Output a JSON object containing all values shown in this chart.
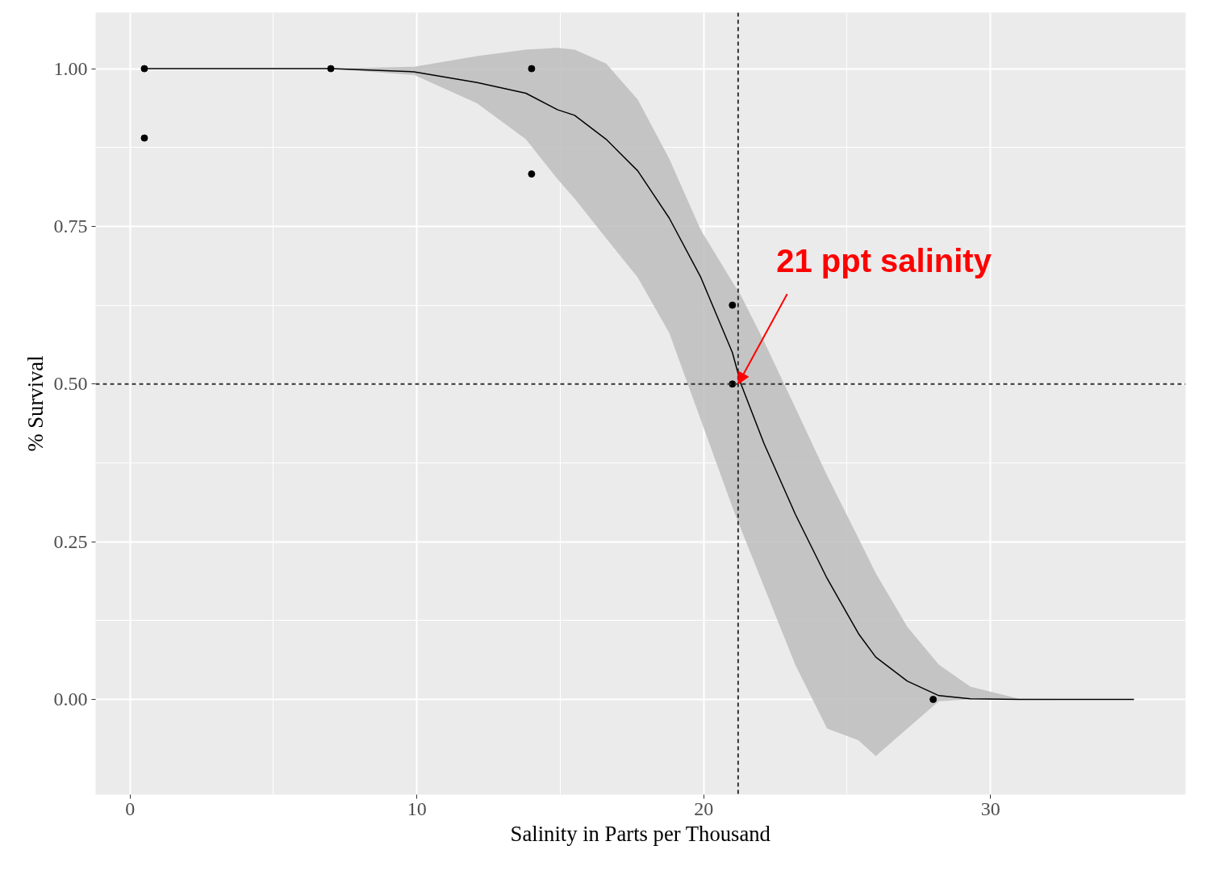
{
  "chart_data": {
    "type": "scatter",
    "xlabel": "Salinity in Parts per Thousand",
    "ylabel": "% Survival",
    "xlim": [
      -1.2,
      36.8
    ],
    "ylim": [
      -0.151,
      1.089
    ],
    "xticks": [
      0,
      10,
      20,
      30
    ],
    "yticks": [
      {
        "value": 0,
        "label": "0.00"
      },
      {
        "value": 0.25,
        "label": "0.25"
      },
      {
        "value": 0.5,
        "label": "0.50"
      },
      {
        "value": 0.75,
        "label": "0.75"
      },
      {
        "value": 1,
        "label": "1.00"
      }
    ],
    "grid": true,
    "marker": "circle",
    "series": [
      {
        "color": "#000000",
        "x": [
          0.5,
          0.5,
          7,
          14,
          14,
          21,
          21,
          28
        ],
        "values": [
          1,
          0.89,
          1,
          1,
          0.833,
          0.625,
          0.5,
          0
        ]
      },
      {
        "type": "line",
        "color": "#000000",
        "line_style": "solid",
        "marker": "none",
        "x": [
          0.5,
          5.5,
          7,
          9.9,
          12.1,
          13.8,
          14.9,
          15.5,
          16.6,
          17.7,
          18.8,
          19.9,
          21.0,
          21.3,
          22.1,
          23.2,
          24.3,
          25.4,
          26.0,
          27.1,
          28.2,
          29.3,
          31.0,
          35.0
        ],
        "values": [
          1,
          1,
          1,
          0.995,
          0.978,
          0.961,
          0.935,
          0.926,
          0.888,
          0.838,
          0.763,
          0.669,
          0.55,
          0.5,
          0.406,
          0.293,
          0.192,
          0.104,
          0.067,
          0.029,
          0.006,
          0.001,
          0,
          0
        ],
        "upper": [
          1,
          1,
          1,
          1.003,
          1.02,
          1.03,
          1.033,
          1.03,
          1.008,
          0.951,
          0.857,
          0.744,
          0.662,
          0.64,
          0.568,
          0.462,
          0.355,
          0.255,
          0.2,
          0.115,
          0.055,
          0.02,
          0.001,
          0
        ],
        "lower": [
          1,
          1,
          1,
          0.99,
          0.945,
          0.888,
          0.825,
          0.794,
          0.731,
          0.669,
          0.581,
          0.443,
          0.305,
          0.27,
          0.179,
          0.054,
          -0.046,
          -0.065,
          -0.09,
          -0.046,
          -0.003,
          0,
          0,
          0
        ]
      }
    ],
    "ref_lines": [
      {
        "axis": "x",
        "value": 21.2,
        "line_style": "dashed"
      },
      {
        "axis": "y",
        "value": 0.5,
        "line_style": "dashed"
      }
    ],
    "annotations": [
      {
        "text": "21 ppt salinity",
        "x": 21.2,
        "y": 0.5
      }
    ]
  }
}
